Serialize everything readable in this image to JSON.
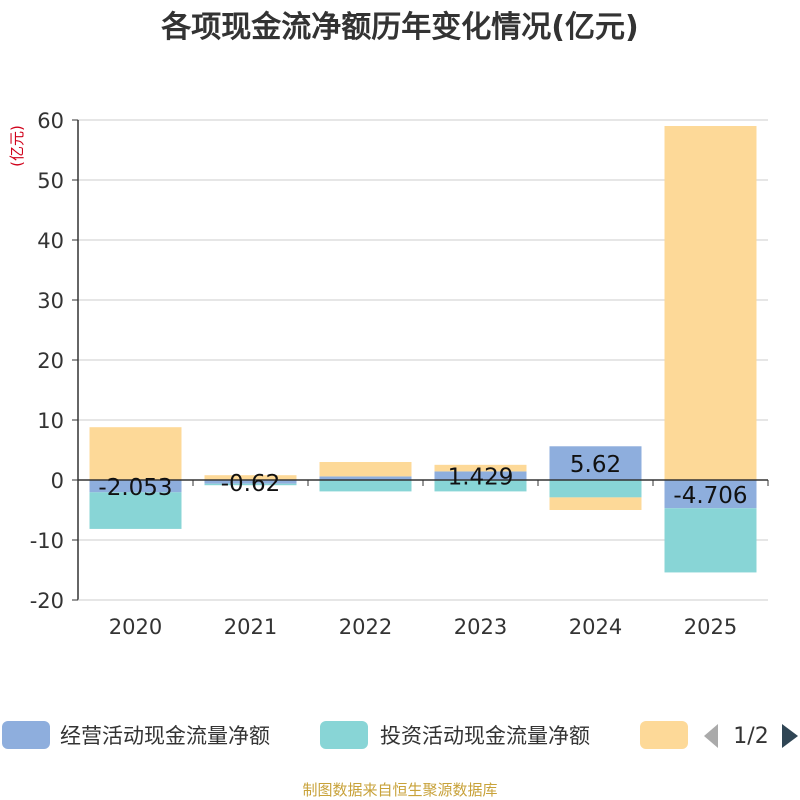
{
  "chart_data": {
    "type": "bar",
    "stacked": true,
    "title": "各项现金流净额历年变化情况(亿元)",
    "ylabel": "(亿元)",
    "categories": [
      "2020",
      "2021",
      "2022",
      "2023",
      "2024",
      "2025"
    ],
    "ylim": [
      -20,
      60
    ],
    "yticks": [
      -20,
      -10,
      0,
      10,
      20,
      30,
      40,
      50,
      60
    ],
    "grid": true,
    "series": [
      {
        "name": "经营活动现金流量净额",
        "color": "#8eaedd",
        "values": [
          -2.053,
          -0.62,
          0.6,
          1.429,
          5.62,
          -4.706
        ],
        "labels": [
          "-2.053",
          "-0.62",
          "",
          "1.429",
          "5.62",
          "-4.706"
        ]
      },
      {
        "name": "投资活动现金流量净额",
        "color": "#88d5d6",
        "values": [
          -6.1,
          -0.25,
          -1.9,
          -1.9,
          -2.9,
          -10.7
        ]
      },
      {
        "name": "",
        "color": "#fdd998",
        "values": [
          8.8,
          0.8,
          2.4,
          1.1,
          -2.1,
          59
        ]
      }
    ],
    "legend": {
      "placement": "bottom",
      "page": "1/2"
    }
  },
  "source": "制图数据来自恒生聚源数据库"
}
